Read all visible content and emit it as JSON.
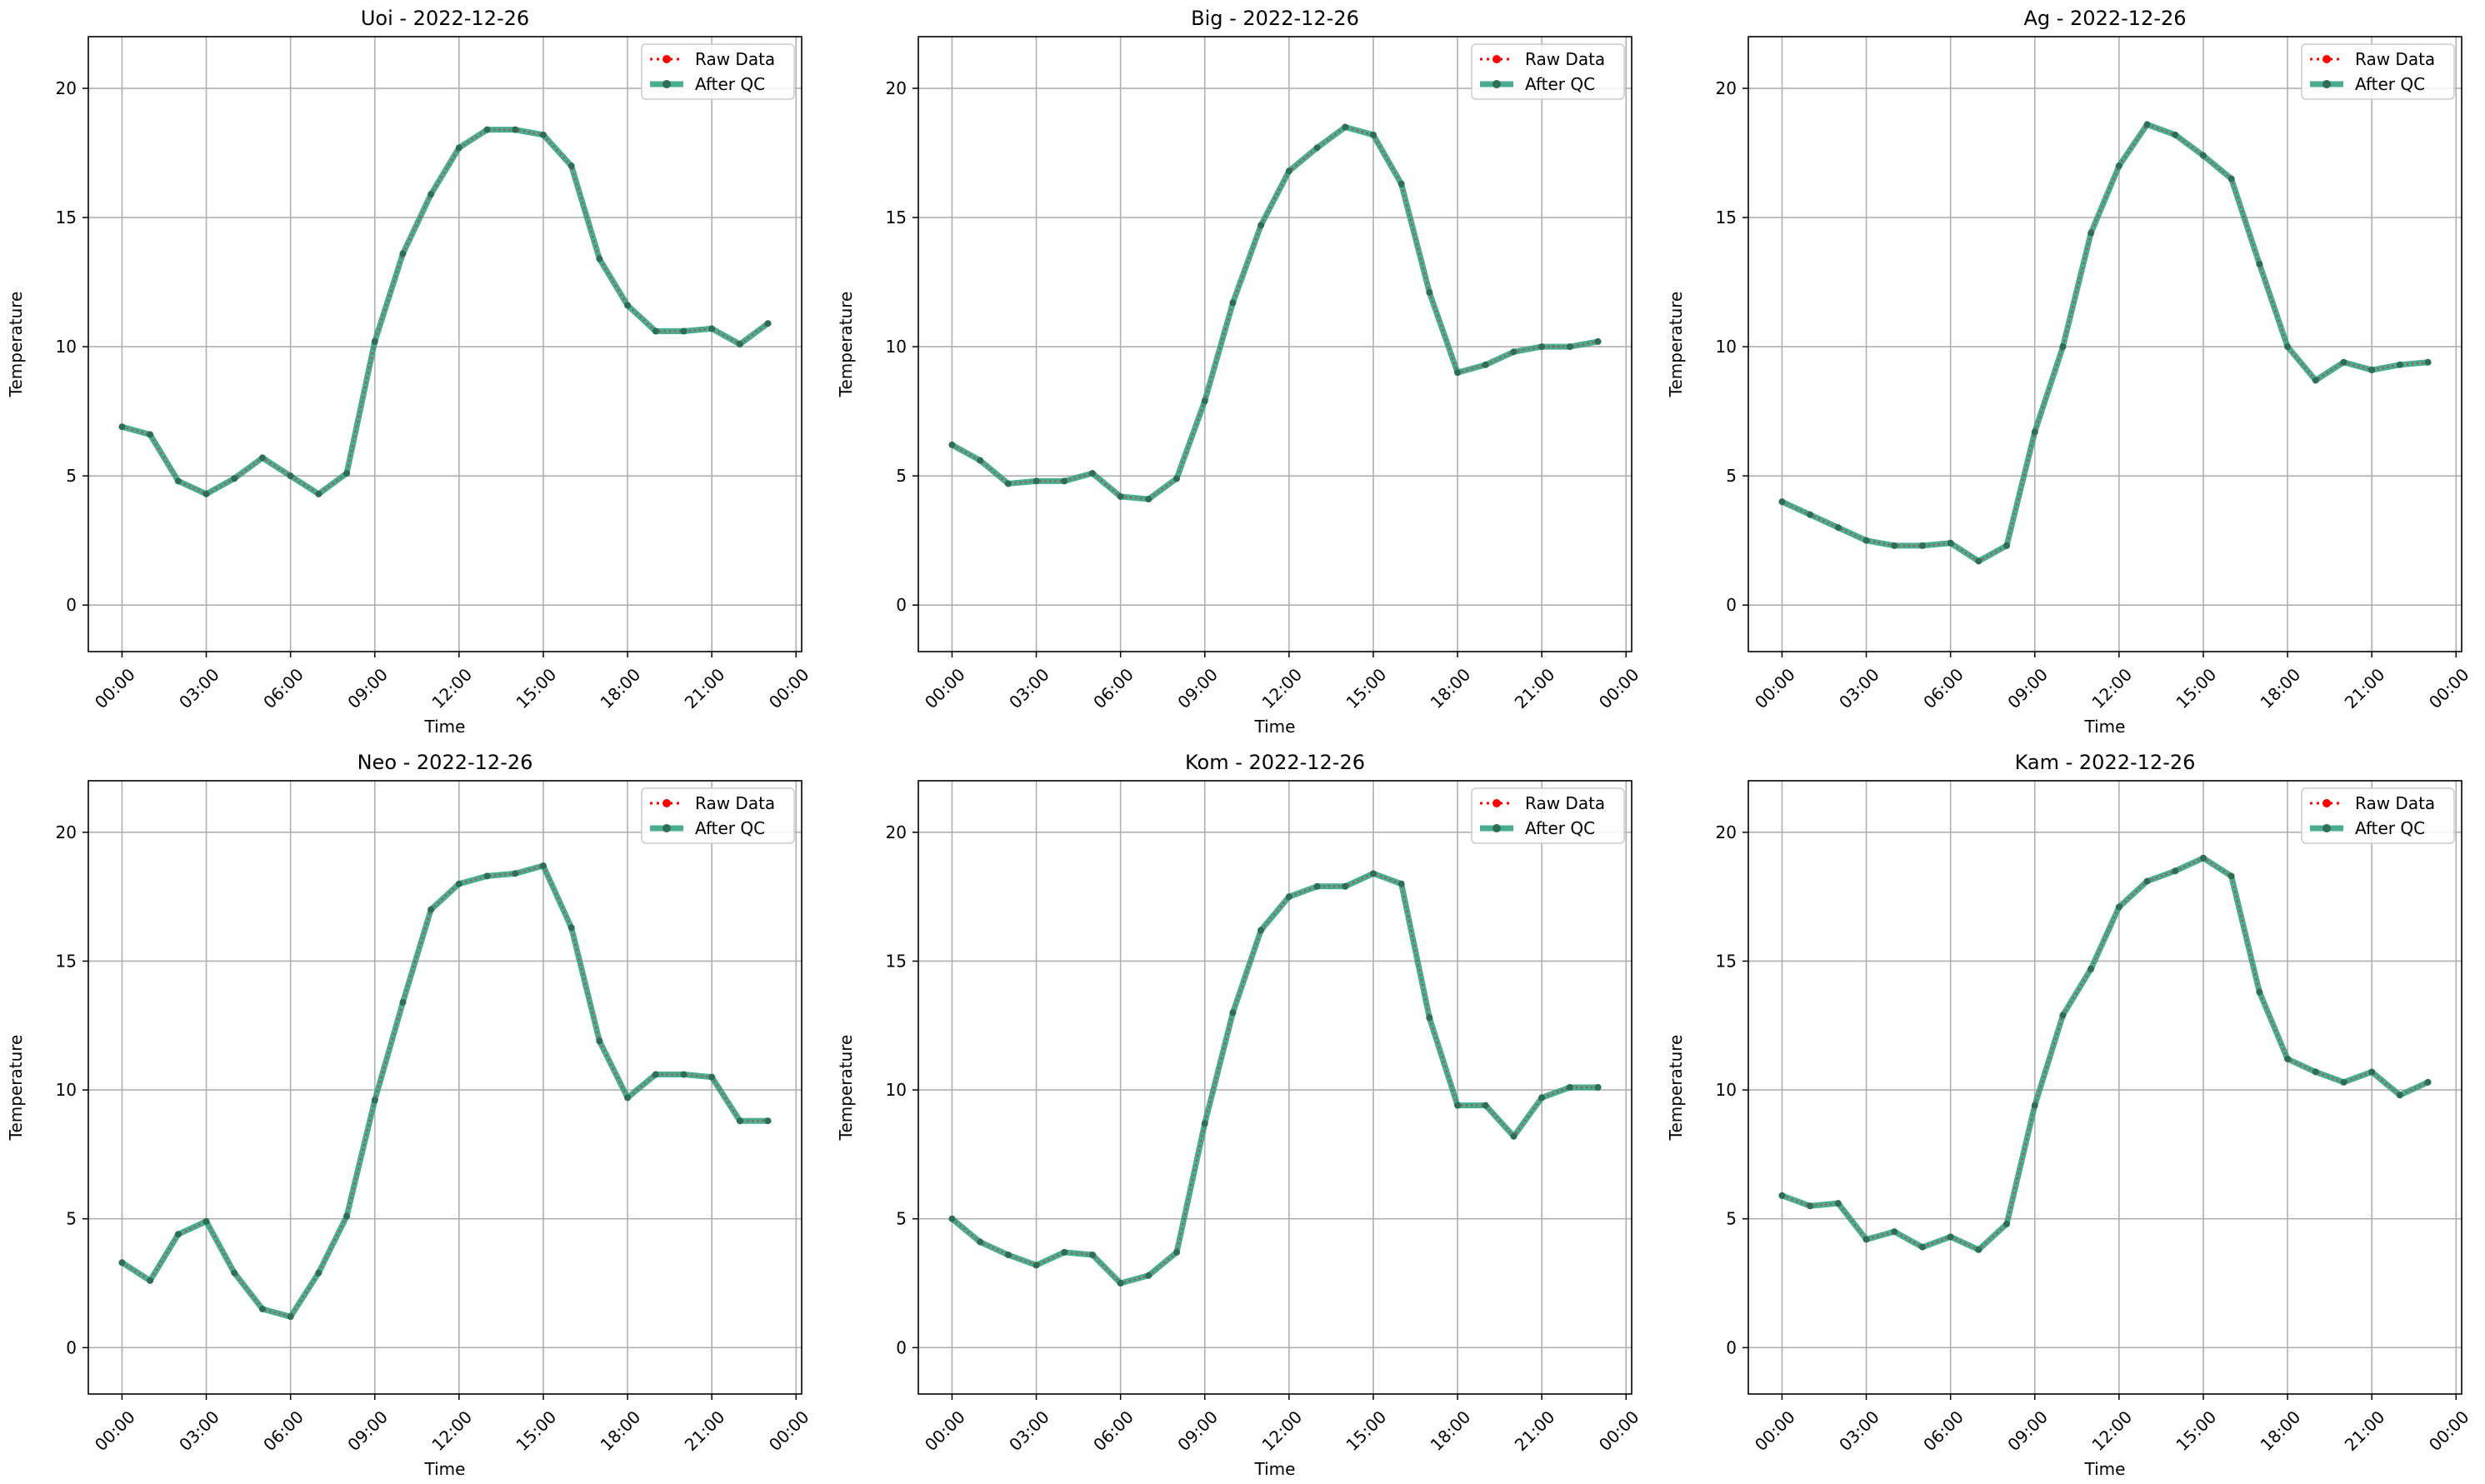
{
  "figure": {
    "legend_entries": [
      "Raw Data",
      "After QC"
    ],
    "colors": {
      "raw": "#ff0000",
      "qc": "#2a9d7c",
      "marker": "#2f6e55",
      "grid": "#b0b0b0"
    }
  },
  "chart_data": [
    {
      "type": "line",
      "title": "Uoi - 2022-12-26",
      "xlabel": "Time",
      "ylabel": "Temperature",
      "xticks": [
        "00:00",
        "03:00",
        "06:00",
        "09:00",
        "12:00",
        "15:00",
        "18:00",
        "21:00",
        "00:00"
      ],
      "yticks": [
        0,
        5,
        10,
        15,
        20
      ],
      "ylim": [
        -1.8,
        22.0
      ],
      "xlim_hours": [
        -1.2,
        24.2
      ],
      "grid": true,
      "legend": "top-right",
      "x_hours": [
        0,
        1,
        2,
        3,
        4,
        5,
        6,
        7,
        8,
        9,
        10,
        11,
        12,
        13,
        14,
        15,
        16,
        17,
        18,
        19,
        20,
        21,
        22,
        23
      ],
      "series": [
        {
          "name": "Raw Data",
          "values": [
            6.9,
            6.6,
            4.8,
            4.3,
            4.9,
            5.7,
            5.0,
            4.3,
            5.1,
            10.2,
            13.6,
            15.9,
            17.7,
            18.4,
            18.4,
            18.2,
            17.0,
            13.4,
            11.6,
            10.6,
            10.6,
            10.7,
            10.1,
            10.9
          ]
        },
        {
          "name": "After QC",
          "values": [
            6.9,
            6.6,
            4.8,
            4.3,
            4.9,
            5.7,
            5.0,
            4.3,
            5.1,
            10.2,
            13.6,
            15.9,
            17.7,
            18.4,
            18.4,
            18.2,
            17.0,
            13.4,
            11.6,
            10.6,
            10.6,
            10.7,
            10.1,
            10.9
          ]
        }
      ]
    },
    {
      "type": "line",
      "title": "Big - 2022-12-26",
      "xlabel": "Time",
      "ylabel": "Temperature",
      "xticks": [
        "00:00",
        "03:00",
        "06:00",
        "09:00",
        "12:00",
        "15:00",
        "18:00",
        "21:00",
        "00:00"
      ],
      "yticks": [
        0,
        5,
        10,
        15,
        20
      ],
      "ylim": [
        -1.8,
        22.0
      ],
      "xlim_hours": [
        -1.2,
        24.2
      ],
      "grid": true,
      "legend": "top-right",
      "x_hours": [
        0,
        1,
        2,
        3,
        4,
        5,
        6,
        7,
        8,
        9,
        10,
        11,
        12,
        13,
        14,
        15,
        16,
        17,
        18,
        19,
        20,
        21,
        22,
        23
      ],
      "series": [
        {
          "name": "Raw Data",
          "values": [
            6.2,
            5.6,
            4.7,
            4.8,
            4.8,
            5.1,
            4.2,
            4.1,
            4.9,
            7.9,
            11.7,
            14.7,
            16.8,
            17.7,
            18.5,
            18.2,
            16.3,
            12.1,
            9.0,
            9.3,
            9.8,
            10.0,
            10.0,
            10.2
          ]
        },
        {
          "name": "After QC",
          "values": [
            6.2,
            5.6,
            4.7,
            4.8,
            4.8,
            5.1,
            4.2,
            4.1,
            4.9,
            7.9,
            11.7,
            14.7,
            16.8,
            17.7,
            18.5,
            18.2,
            16.3,
            12.1,
            9.0,
            9.3,
            9.8,
            10.0,
            10.0,
            10.2
          ]
        }
      ]
    },
    {
      "type": "line",
      "title": "Ag - 2022-12-26",
      "xlabel": "Time",
      "ylabel": "Temperature",
      "xticks": [
        "00:00",
        "03:00",
        "06:00",
        "09:00",
        "12:00",
        "15:00",
        "18:00",
        "21:00",
        "00:00"
      ],
      "yticks": [
        0,
        5,
        10,
        15,
        20
      ],
      "ylim": [
        -1.8,
        22.0
      ],
      "xlim_hours": [
        -1.2,
        24.2
      ],
      "grid": true,
      "legend": "top-right",
      "x_hours": [
        0,
        1,
        2,
        3,
        4,
        5,
        6,
        7,
        8,
        9,
        10,
        11,
        12,
        13,
        14,
        15,
        16,
        17,
        18,
        19,
        20,
        21,
        22,
        23
      ],
      "series": [
        {
          "name": "Raw Data",
          "values": [
            4.0,
            3.5,
            3.0,
            2.5,
            2.3,
            2.3,
            2.4,
            1.7,
            2.3,
            6.7,
            10.0,
            14.4,
            17.0,
            18.6,
            18.2,
            17.4,
            16.5,
            13.2,
            10.0,
            8.7,
            9.4,
            9.1,
            9.3,
            9.4
          ]
        },
        {
          "name": "After QC",
          "values": [
            4.0,
            3.5,
            3.0,
            2.5,
            2.3,
            2.3,
            2.4,
            1.7,
            2.3,
            6.7,
            10.0,
            14.4,
            17.0,
            18.6,
            18.2,
            17.4,
            16.5,
            13.2,
            10.0,
            8.7,
            9.4,
            9.1,
            9.3,
            9.4
          ]
        }
      ]
    },
    {
      "type": "line",
      "title": "Neo - 2022-12-26",
      "xlabel": "Time",
      "ylabel": "Temperature",
      "xticks": [
        "00:00",
        "03:00",
        "06:00",
        "09:00",
        "12:00",
        "15:00",
        "18:00",
        "21:00",
        "00:00"
      ],
      "yticks": [
        0,
        5,
        10,
        15,
        20
      ],
      "ylim": [
        -1.8,
        22.0
      ],
      "xlim_hours": [
        -1.2,
        24.2
      ],
      "grid": true,
      "legend": "top-right",
      "x_hours": [
        0,
        1,
        2,
        3,
        4,
        5,
        6,
        7,
        8,
        9,
        10,
        11,
        12,
        13,
        14,
        15,
        16,
        17,
        18,
        19,
        20,
        21,
        22,
        23
      ],
      "series": [
        {
          "name": "Raw Data",
          "values": [
            3.3,
            2.6,
            4.4,
            4.9,
            2.9,
            1.5,
            1.2,
            2.9,
            5.1,
            9.6,
            13.4,
            17.0,
            18.0,
            18.3,
            18.4,
            18.7,
            16.3,
            11.9,
            9.7,
            10.6,
            10.6,
            10.5,
            8.8,
            8.8
          ]
        },
        {
          "name": "After QC",
          "values": [
            3.3,
            2.6,
            4.4,
            4.9,
            2.9,
            1.5,
            1.2,
            2.9,
            5.1,
            9.6,
            13.4,
            17.0,
            18.0,
            18.3,
            18.4,
            18.7,
            16.3,
            11.9,
            9.7,
            10.6,
            10.6,
            10.5,
            8.8,
            8.8
          ]
        }
      ]
    },
    {
      "type": "line",
      "title": "Kom - 2022-12-26",
      "xlabel": "Time",
      "ylabel": "Temperature",
      "xticks": [
        "00:00",
        "03:00",
        "06:00",
        "09:00",
        "12:00",
        "15:00",
        "18:00",
        "21:00",
        "00:00"
      ],
      "yticks": [
        0,
        5,
        10,
        15,
        20
      ],
      "ylim": [
        -1.8,
        22.0
      ],
      "xlim_hours": [
        -1.2,
        24.2
      ],
      "grid": true,
      "legend": "top-right",
      "x_hours": [
        0,
        1,
        2,
        3,
        4,
        5,
        6,
        7,
        8,
        9,
        10,
        11,
        12,
        13,
        14,
        15,
        16,
        17,
        18,
        19,
        20,
        21,
        22,
        23
      ],
      "series": [
        {
          "name": "Raw Data",
          "values": [
            5.0,
            4.1,
            3.6,
            3.2,
            3.7,
            3.6,
            2.5,
            2.8,
            3.7,
            8.7,
            13.0,
            16.2,
            17.5,
            17.9,
            17.9,
            18.4,
            18.0,
            12.8,
            9.4,
            9.4,
            8.2,
            9.7,
            10.1,
            10.1
          ]
        },
        {
          "name": "After QC",
          "values": [
            5.0,
            4.1,
            3.6,
            3.2,
            3.7,
            3.6,
            2.5,
            2.8,
            3.7,
            8.7,
            13.0,
            16.2,
            17.5,
            17.9,
            17.9,
            18.4,
            18.0,
            12.8,
            9.4,
            9.4,
            8.2,
            9.7,
            10.1,
            10.1
          ]
        }
      ]
    },
    {
      "type": "line",
      "title": "Kam - 2022-12-26",
      "xlabel": "Time",
      "ylabel": "Temperature",
      "xticks": [
        "00:00",
        "03:00",
        "06:00",
        "09:00",
        "12:00",
        "15:00",
        "18:00",
        "21:00",
        "00:00"
      ],
      "yticks": [
        0,
        5,
        10,
        15,
        20
      ],
      "ylim": [
        -1.8,
        22.0
      ],
      "xlim_hours": [
        -1.2,
        24.2
      ],
      "grid": true,
      "legend": "top-right",
      "x_hours": [
        0,
        1,
        2,
        3,
        4,
        5,
        6,
        7,
        8,
        9,
        10,
        11,
        12,
        13,
        14,
        15,
        16,
        17,
        18,
        19,
        20,
        21,
        22,
        23
      ],
      "series": [
        {
          "name": "Raw Data",
          "values": [
            5.9,
            5.5,
            5.6,
            4.2,
            4.5,
            3.9,
            4.3,
            3.8,
            4.8,
            9.4,
            12.9,
            14.7,
            17.1,
            18.1,
            18.5,
            19.0,
            18.3,
            13.8,
            11.2,
            10.7,
            10.3,
            10.7,
            9.8,
            10.3
          ]
        },
        {
          "name": "After QC",
          "values": [
            5.9,
            5.5,
            5.6,
            4.2,
            4.5,
            3.9,
            4.3,
            3.8,
            4.8,
            9.4,
            12.9,
            14.7,
            17.1,
            18.1,
            18.5,
            19.0,
            18.3,
            13.8,
            11.2,
            10.7,
            10.3,
            10.7,
            9.8,
            10.3
          ]
        }
      ]
    }
  ]
}
